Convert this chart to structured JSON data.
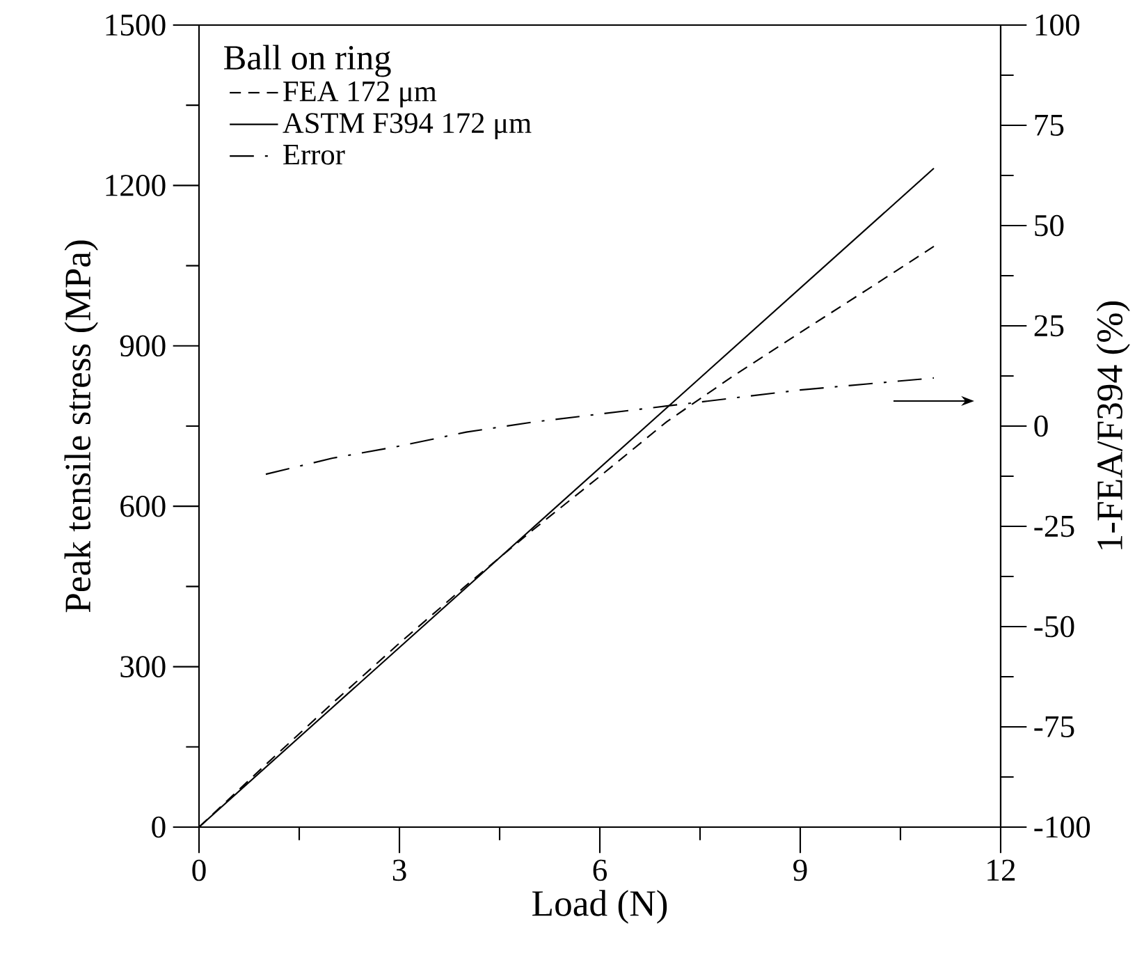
{
  "chart_data": {
    "type": "line",
    "xlabel": "Load (N)",
    "ylabel": "Peak tensile stress (MPa)",
    "y2label": "1-FEA/F394 (%)",
    "legend_title": "Ball on ring",
    "legend": "top left",
    "marker": "none",
    "xlim": [
      0,
      12
    ],
    "xticks": [
      0,
      3,
      6,
      9,
      12
    ],
    "ylim": [
      0,
      1500
    ],
    "yticks": [
      0,
      300,
      600,
      900,
      1200,
      1500
    ],
    "y2lim": [
      -100,
      100
    ],
    "y2ticks": [
      -100,
      -75,
      -50,
      -25,
      0,
      25,
      50,
      75,
      100
    ],
    "series": [
      {
        "name": "FEA 172 μm",
        "color": "#000000",
        "line_style": "dashed",
        "x": [
          0,
          1,
          2,
          3,
          4,
          5,
          6,
          7,
          8,
          9,
          10,
          11
        ],
        "values": [
          0,
          117,
          232,
          344,
          452,
          556,
          656,
          758,
          844,
          925,
          1005,
          1086
        ]
      },
      {
        "name": "ASTM F394 172 μm",
        "color": "#000000",
        "line_style": "solid",
        "x": [
          0,
          11
        ],
        "values": [
          0,
          1232
        ]
      },
      {
        "name": "Error",
        "color": "#000000",
        "line_style": "dashdot",
        "axis": "y2",
        "x": [
          1,
          2,
          3,
          4,
          5,
          6,
          7,
          8,
          9,
          10,
          11
        ],
        "values": [
          -12,
          -8,
          -5,
          -1.5,
          1,
          3,
          5,
          7,
          9,
          10.5,
          12
        ]
      }
    ]
  }
}
